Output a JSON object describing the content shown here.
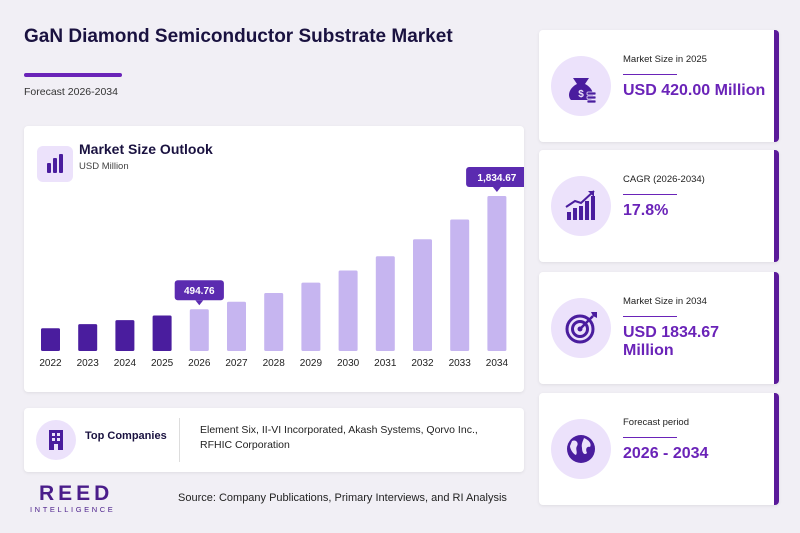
{
  "header": {
    "title": "GaN Diamond Semiconductor Substrate Market",
    "subtitle": "Forecast 2026-2034"
  },
  "chart_card": {
    "title": "Market Size Outlook",
    "unit": "USD Million"
  },
  "chart_data": {
    "type": "bar",
    "categories": [
      "2022",
      "2023",
      "2024",
      "2025",
      "2026",
      "2027",
      "2028",
      "2029",
      "2030",
      "2031",
      "2032",
      "2033",
      "2034"
    ],
    "values": [
      270,
      318,
      365,
      420,
      494.76,
      583,
      687,
      809,
      953,
      1122,
      1322,
      1557,
      1834.67
    ],
    "callouts": [
      {
        "index": 4,
        "label": "494.76"
      },
      {
        "index": 12,
        "label": "1,834.67"
      }
    ],
    "ylim": [
      0,
      1834.67
    ],
    "colors": {
      "historical": "#4a1d9e",
      "forecast": "#c6b5f0",
      "callout": "#5b2bb0"
    },
    "grid": false
  },
  "companies": {
    "label": "Top Companies",
    "list": "Element Six, II-VI Incorporated, Akash Systems, Qorvo Inc., RFHIC Corporation"
  },
  "stats": [
    {
      "label": "Market Size in 2025",
      "value": "USD 420.00 Million",
      "icon": "money-bag-icon"
    },
    {
      "label": "CAGR (2026-2034)",
      "value": "17.8%",
      "icon": "growth-chart-icon"
    },
    {
      "label": "Market Size in 2034",
      "value": "USD 1834.67 Million",
      "icon": "target-icon"
    },
    {
      "label": "Forecast period",
      "value": "2026 - 2034",
      "icon": "globe-icon"
    }
  ],
  "footer": {
    "logo_main": "REED",
    "logo_sub": "INTELLIGENCE",
    "source": "Source: Company Publications, Primary Interviews, and RI Analysis"
  }
}
